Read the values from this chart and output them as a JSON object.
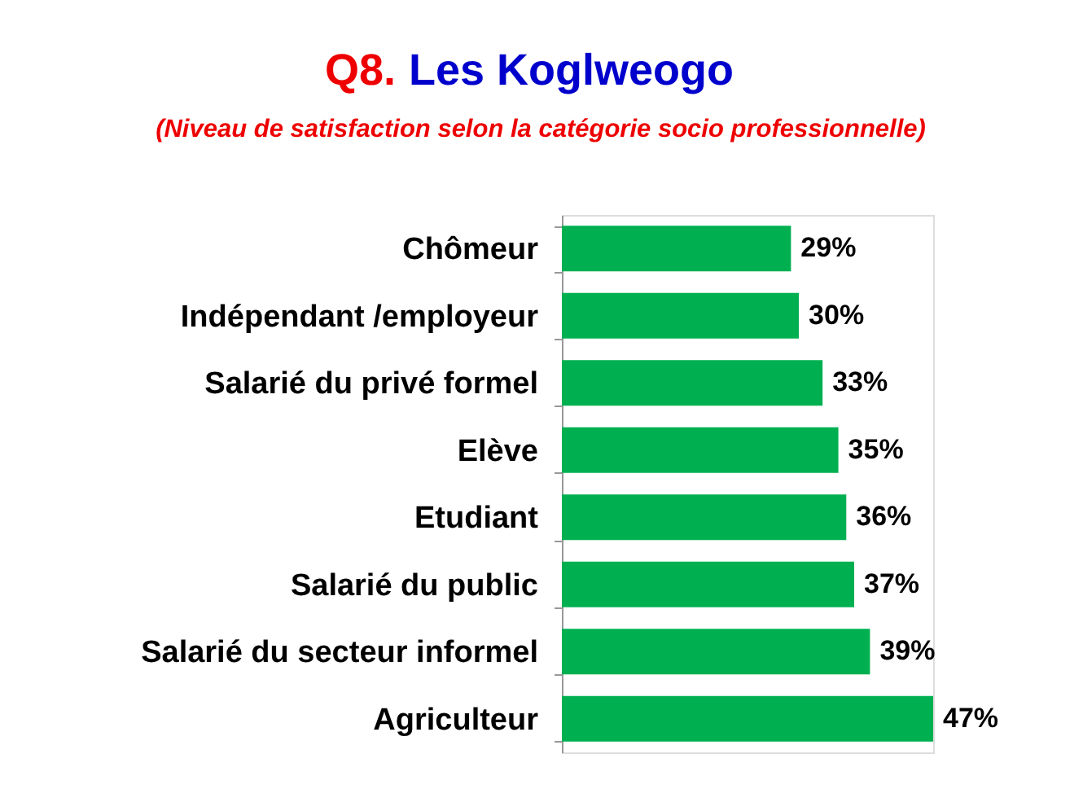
{
  "chart_data": {
    "type": "bar",
    "orientation": "horizontal",
    "title": "Q8. Les Koglweogo",
    "subtitle": "(Niveau de satisfaction selon la catégorie socio professionnelle)",
    "categories": [
      "Chômeur",
      "Indépendant /employeur",
      "Salarié du privé formel",
      "Elève",
      "Etudiant",
      "Salarié du public",
      "Salarié du secteur informel",
      "Agriculteur"
    ],
    "values": [
      29,
      30,
      33,
      35,
      36,
      37,
      39,
      47
    ],
    "value_labels": [
      "29%",
      "30%",
      "33%",
      "35%",
      "36%",
      "37%",
      "39%",
      "47%"
    ],
    "color": "#00b050",
    "grid": false
  }
}
